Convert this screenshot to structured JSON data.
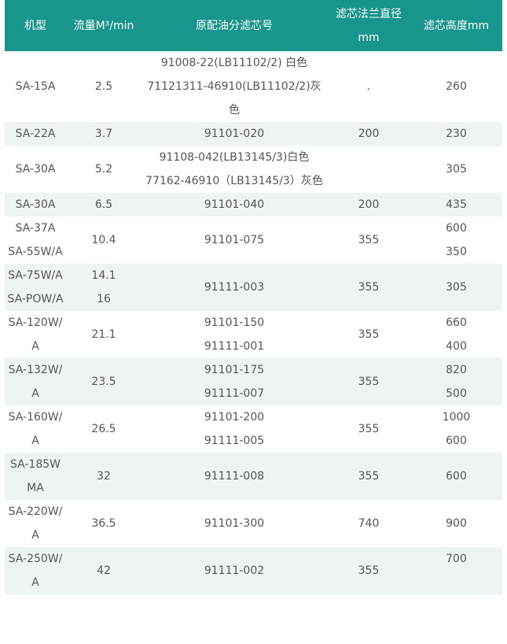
{
  "headers": [
    "机型",
    "流量M³/min",
    "原配油分滤芯号",
    "滤芯法兰直径\nmm",
    "滤芯高度mm"
  ],
  "rows": [
    {
      "model": [
        "SA-15A"
      ],
      "flow": [
        "2.5"
      ],
      "filter": [
        "91008-22(LB11102/2) 白色",
        "71121311-46910(LB11102/2)灰色"
      ],
      "diameter": [
        "."
      ],
      "height": [
        "260"
      ]
    },
    {
      "model": [
        "SA-22A"
      ],
      "flow": [
        "3.7"
      ],
      "filter": [
        "91101-020"
      ],
      "diameter": [
        "200"
      ],
      "height": [
        "230"
      ]
    },
    {
      "model": [
        "SA-30A"
      ],
      "flow": [
        "5.2"
      ],
      "filter": [
        "91108-042(LB13145/3)白色",
        "77162-46910（LB13145/3）灰色"
      ],
      "diameter": [
        ""
      ],
      "height": [
        "305"
      ]
    },
    {
      "model": [
        "SA-30A"
      ],
      "flow": [
        "6.5"
      ],
      "filter": [
        "91101-040"
      ],
      "diameter": [
        "200"
      ],
      "height": [
        "435"
      ]
    },
    {
      "model": [
        "SA-37A",
        "SA-55W/A"
      ],
      "flow": [
        "10.4"
      ],
      "filter": [
        "91101-075"
      ],
      "diameter": [
        "355"
      ],
      "height": [
        "600",
        "350"
      ]
    },
    {
      "model": [
        "SA-75W/A",
        "SA-POW/A"
      ],
      "flow": [
        "14.1",
        "16"
      ],
      "filter": [
        "91111-003"
      ],
      "diameter": [
        "355"
      ],
      "height": [
        "305"
      ]
    },
    {
      "model": [
        "SA-120W/A"
      ],
      "flow": [
        "21.1"
      ],
      "filter": [
        "91101-150",
        "91111-001"
      ],
      "diameter": [
        "355"
      ],
      "height": [
        "660",
        "400"
      ]
    },
    {
      "model": [
        "SA-132W/A"
      ],
      "flow": [
        "23.5"
      ],
      "filter": [
        "91101-175",
        "91111-007"
      ],
      "diameter": [
        "355"
      ],
      "height": [
        "820",
        "500"
      ]
    },
    {
      "model": [
        "SA-160W/A"
      ],
      "flow": [
        "26.5"
      ],
      "filter": [
        "91101-200",
        "91111-005"
      ],
      "diameter": [
        "355"
      ],
      "height": [
        "1000",
        "600"
      ]
    },
    {
      "model": [
        "SA-185WMA"
      ],
      "flow": [
        "32"
      ],
      "filter": [
        "91111-008"
      ],
      "diameter": [
        "355"
      ],
      "height": [
        "600"
      ]
    },
    {
      "model": [
        "SA-220W/A"
      ],
      "flow": [
        "36.5"
      ],
      "filter": [
        "91101-300"
      ],
      "diameter": [
        "740"
      ],
      "height": [
        "900"
      ]
    },
    {
      "model": [
        "SA-250W/A"
      ],
      "flow": [
        "42"
      ],
      "filter": [
        "91111-002"
      ],
      "diameter": [
        "355"
      ],
      "height": [
        "700",
        ""
      ]
    }
  ],
  "colors": {
    "header_bg": "#18958c",
    "header_text": "#ffffff",
    "stripe": "#eef3f3",
    "text": "#555555"
  }
}
